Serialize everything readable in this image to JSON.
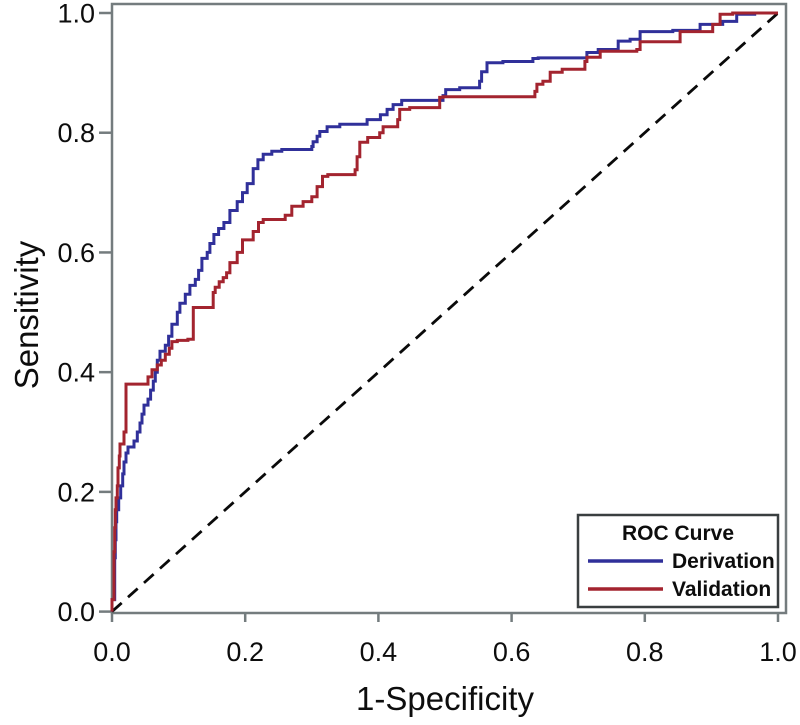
{
  "figure": {
    "kind": "roc-plot-figure",
    "background": "#ffffff",
    "frame_color": "#747c7e",
    "text_color": "#0d0d0d",
    "legend_border_color": "#3a3f40"
  },
  "chart_data": {
    "type": "line",
    "subtype": "roc-step-curves",
    "title": "",
    "xlabel": "1-Specificity",
    "ylabel": "Sensitivity",
    "xlim": [
      0,
      1
    ],
    "ylim": [
      0,
      1
    ],
    "x_ticks": [
      "0.0",
      "0.2",
      "0.4",
      "0.6",
      "0.8",
      "1.0"
    ],
    "y_ticks": [
      "0.0",
      "0.2",
      "0.4",
      "0.6",
      "0.8",
      "1.0"
    ],
    "grid": false,
    "legend_title": "ROC Curve",
    "legend_position": "bottom-right",
    "reference_line": {
      "style": "dashed",
      "color": "#0a0a0a",
      "from": [
        0,
        0
      ],
      "to": [
        1,
        1
      ]
    },
    "series": [
      {
        "name": "Derivation",
        "color": "#30309a",
        "step": true,
        "points": [
          [
            0,
            0
          ],
          [
            0.004,
            0.02
          ],
          [
            0.004,
            0.05
          ],
          [
            0.005,
            0.09
          ],
          [
            0.006,
            0.12
          ],
          [
            0.007,
            0.15
          ],
          [
            0.01,
            0.17
          ],
          [
            0.013,
            0.19
          ],
          [
            0.016,
            0.21
          ],
          [
            0.018,
            0.23
          ],
          [
            0.021,
            0.25
          ],
          [
            0.024,
            0.265
          ],
          [
            0.033,
            0.275
          ],
          [
            0.038,
            0.285
          ],
          [
            0.042,
            0.3
          ],
          [
            0.045,
            0.315
          ],
          [
            0.048,
            0.33
          ],
          [
            0.054,
            0.345
          ],
          [
            0.058,
            0.355
          ],
          [
            0.062,
            0.37
          ],
          [
            0.065,
            0.385
          ],
          [
            0.068,
            0.4
          ],
          [
            0.072,
            0.42
          ],
          [
            0.08,
            0.435
          ],
          [
            0.085,
            0.445
          ],
          [
            0.09,
            0.46
          ],
          [
            0.098,
            0.48
          ],
          [
            0.102,
            0.5
          ],
          [
            0.11,
            0.515
          ],
          [
            0.117,
            0.53
          ],
          [
            0.125,
            0.545
          ],
          [
            0.13,
            0.555
          ],
          [
            0.135,
            0.57
          ],
          [
            0.143,
            0.59
          ],
          [
            0.147,
            0.6
          ],
          [
            0.153,
            0.615
          ],
          [
            0.16,
            0.63
          ],
          [
            0.168,
            0.64
          ],
          [
            0.177,
            0.65
          ],
          [
            0.188,
            0.67
          ],
          [
            0.196,
            0.685
          ],
          [
            0.203,
            0.7
          ],
          [
            0.212,
            0.715
          ],
          [
            0.219,
            0.74
          ],
          [
            0.227,
            0.755
          ],
          [
            0.24,
            0.764
          ],
          [
            0.255,
            0.769
          ],
          [
            0.3,
            0.772
          ],
          [
            0.302,
            0.777
          ],
          [
            0.308,
            0.785
          ],
          [
            0.312,
            0.794
          ],
          [
            0.323,
            0.802
          ],
          [
            0.342,
            0.81
          ],
          [
            0.383,
            0.814
          ],
          [
            0.403,
            0.822
          ],
          [
            0.413,
            0.83
          ],
          [
            0.422,
            0.839
          ],
          [
            0.435,
            0.847
          ],
          [
            0.497,
            0.854
          ],
          [
            0.501,
            0.862
          ],
          [
            0.522,
            0.872
          ],
          [
            0.552,
            0.875
          ],
          [
            0.555,
            0.886
          ],
          [
            0.563,
            0.902
          ],
          [
            0.587,
            0.917
          ],
          [
            0.632,
            0.919
          ],
          [
            0.64,
            0.924
          ],
          [
            0.713,
            0.925
          ],
          [
            0.73,
            0.934
          ],
          [
            0.76,
            0.939
          ],
          [
            0.778,
            0.953
          ],
          [
            0.793,
            0.956
          ],
          [
            0.842,
            0.969
          ],
          [
            0.883,
            0.971
          ],
          [
            0.917,
            0.981
          ],
          [
            0.938,
            0.986
          ],
          [
            0.965,
            0.998
          ],
          [
            1,
            1
          ]
        ]
      },
      {
        "name": "Validation",
        "color": "#a3242f",
        "step": true,
        "points": [
          [
            0,
            0
          ],
          [
            0.003,
            0.02
          ],
          [
            0.003,
            0.06
          ],
          [
            0.004,
            0.1
          ],
          [
            0.005,
            0.14
          ],
          [
            0.006,
            0.17
          ],
          [
            0.008,
            0.19
          ],
          [
            0.009,
            0.21
          ],
          [
            0.011,
            0.24
          ],
          [
            0.012,
            0.26
          ],
          [
            0.018,
            0.28
          ],
          [
            0.021,
            0.3
          ],
          [
            0.021,
            0.34
          ],
          [
            0.021,
            0.375
          ],
          [
            0.054,
            0.38
          ],
          [
            0.06,
            0.392
          ],
          [
            0.068,
            0.404
          ],
          [
            0.074,
            0.412
          ],
          [
            0.08,
            0.42
          ],
          [
            0.086,
            0.43
          ],
          [
            0.09,
            0.44
          ],
          [
            0.098,
            0.451
          ],
          [
            0.114,
            0.453
          ],
          [
            0.122,
            0.455
          ],
          [
            0.152,
            0.508
          ],
          [
            0.155,
            0.533
          ],
          [
            0.161,
            0.542
          ],
          [
            0.167,
            0.551
          ],
          [
            0.172,
            0.558
          ],
          [
            0.177,
            0.566
          ],
          [
            0.188,
            0.583
          ],
          [
            0.196,
            0.6
          ],
          [
            0.212,
            0.621
          ],
          [
            0.22,
            0.635
          ],
          [
            0.227,
            0.65
          ],
          [
            0.26,
            0.655
          ],
          [
            0.27,
            0.662
          ],
          [
            0.287,
            0.677
          ],
          [
            0.3,
            0.685
          ],
          [
            0.308,
            0.693
          ],
          [
            0.316,
            0.71
          ],
          [
            0.324,
            0.727
          ],
          [
            0.365,
            0.73
          ],
          [
            0.368,
            0.738
          ],
          [
            0.372,
            0.76
          ],
          [
            0.384,
            0.784
          ],
          [
            0.402,
            0.792
          ],
          [
            0.407,
            0.8
          ],
          [
            0.429,
            0.81
          ],
          [
            0.432,
            0.822
          ],
          [
            0.447,
            0.839
          ],
          [
            0.492,
            0.842
          ],
          [
            0.497,
            0.859
          ],
          [
            0.635,
            0.86
          ],
          [
            0.638,
            0.869
          ],
          [
            0.647,
            0.881
          ],
          [
            0.658,
            0.886
          ],
          [
            0.676,
            0.901
          ],
          [
            0.683,
            0.906
          ],
          [
            0.71,
            0.906
          ],
          [
            0.713,
            0.919
          ],
          [
            0.733,
            0.926
          ],
          [
            0.788,
            0.936
          ],
          [
            0.793,
            0.939
          ],
          [
            0.853,
            0.952
          ],
          [
            0.902,
            0.969
          ],
          [
            0.913,
            0.981
          ],
          [
            0.932,
            0.998
          ],
          [
            1,
            1
          ]
        ]
      }
    ]
  }
}
